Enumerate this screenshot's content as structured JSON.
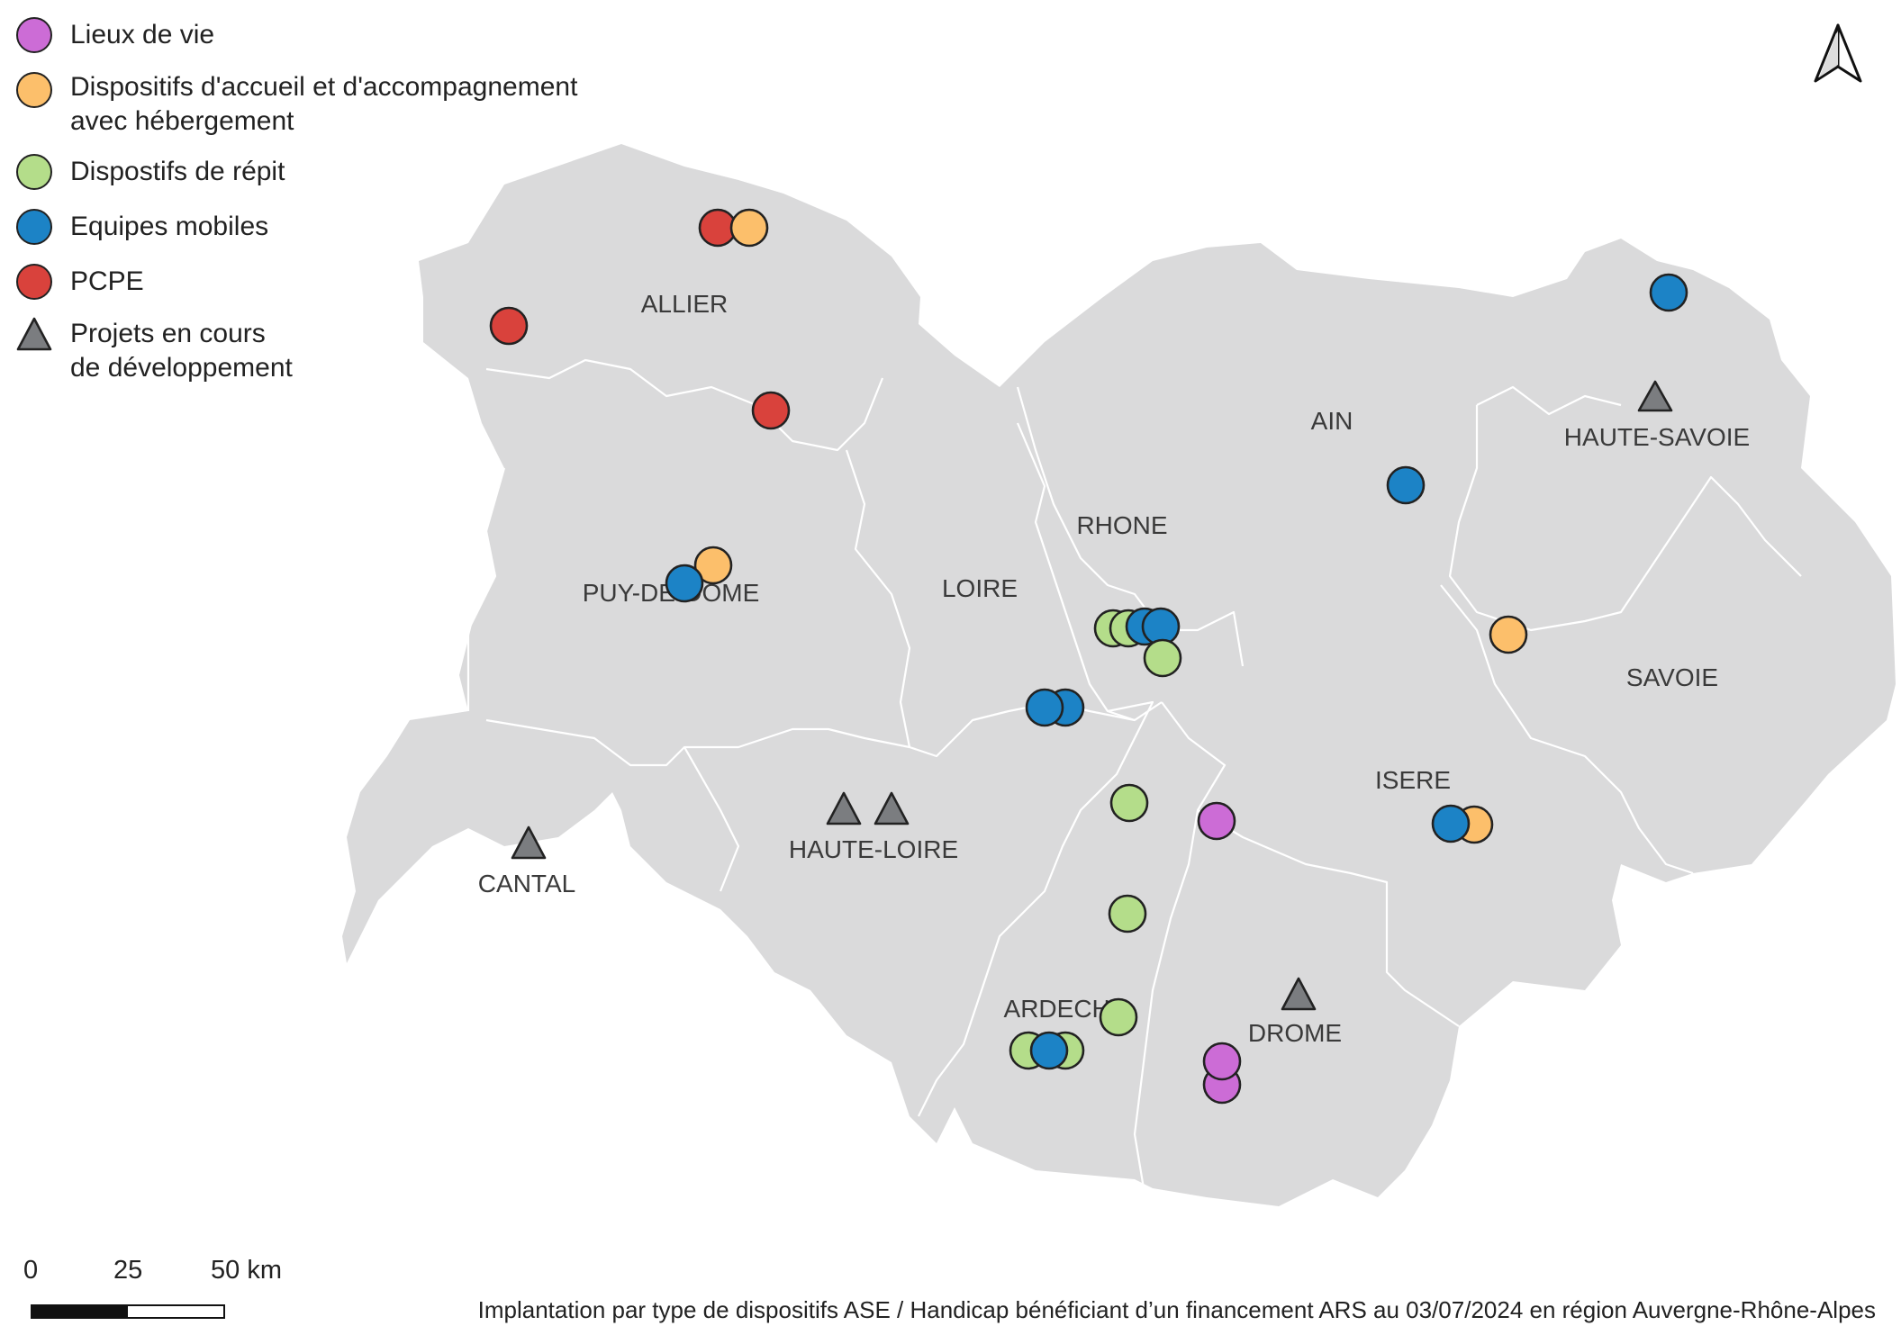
{
  "legend": [
    {
      "label": "Lieux de vie",
      "symbol": "circle",
      "color": "#cc6cd6"
    },
    {
      "label": "Dispositifs d'accueil et d'accompagnement\navec hébergement",
      "symbol": "circle",
      "color": "#fcbf6b"
    },
    {
      "label": "Dispostifs de répit",
      "symbol": "circle",
      "color": "#b4dd8a"
    },
    {
      "label": "Equipes mobiles",
      "symbol": "circle",
      "color": "#1c83c6"
    },
    {
      "label": "PCPE",
      "symbol": "circle",
      "color": "#d9423c"
    },
    {
      "label": "Projets en cours\nde développement",
      "symbol": "triangle",
      "color": "#7b7d80"
    }
  ],
  "departments": [
    "ALLIER",
    "PUY-DE-DOME",
    "CANTAL",
    "HAUTE-LOIRE",
    "LOIRE",
    "RHONE",
    "AIN",
    "HAUTE-SAVOIE",
    "SAVOIE",
    "ISERE",
    "DROME",
    "ARDECHE"
  ],
  "scale": {
    "labels": [
      "0",
      "25",
      "50 km"
    ]
  },
  "caption": "Implantation par type de dispositifs ASE / Handicap bénéficiant d’un financement ARS au 03/07/2024 en région Auvergne-Rhône-Alpes",
  "north_arrow": "north-arrow-icon",
  "colors": {
    "region": "#dadadb",
    "border": "#ffffff",
    "marker_stroke": "#222222"
  }
}
